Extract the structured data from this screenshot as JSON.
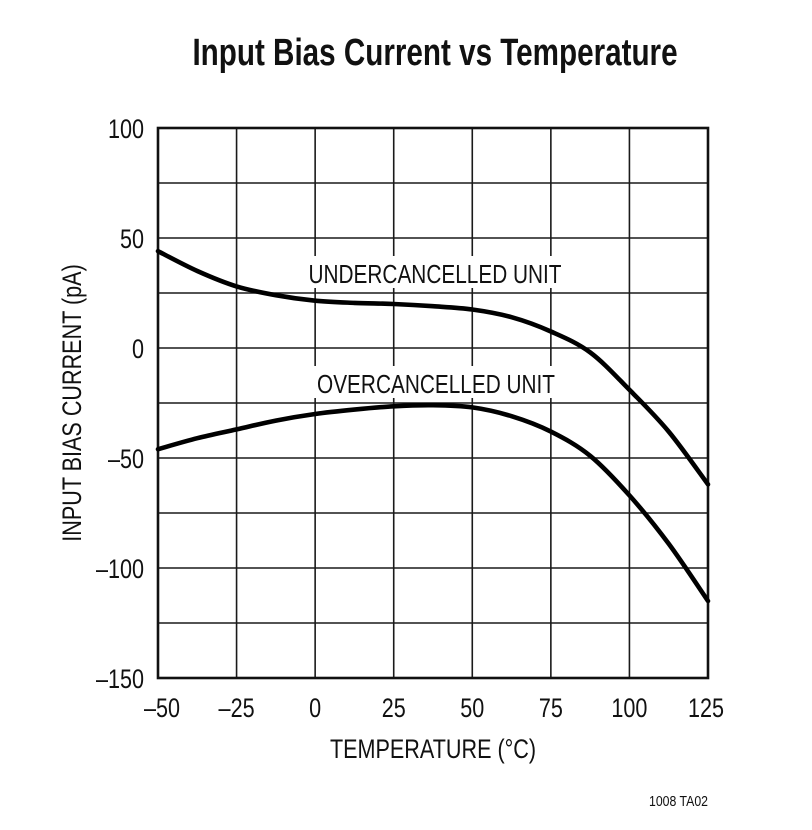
{
  "figure": {
    "title": "Input Bias Current vs Temperature",
    "footer_code": "1008 TA02"
  },
  "chart_data": {
    "type": "line",
    "title": "Input Bias Current vs Temperature",
    "xlabel": "TEMPERATURE (°C)",
    "ylabel": "INPUT BIAS CURRENT (pA)",
    "xlim": [
      -50,
      125
    ],
    "ylim": [
      -150,
      100
    ],
    "x_ticks": [
      -50,
      -25,
      0,
      25,
      50,
      75,
      100,
      125
    ],
    "x_tick_labels": [
      "–50",
      "–25",
      "0",
      "25",
      "50",
      "75",
      "100",
      "125"
    ],
    "y_ticks": [
      100,
      50,
      0,
      -50,
      -100,
      -150
    ],
    "y_tick_labels": [
      "100",
      "50",
      "0",
      "–50",
      "–100",
      "–150"
    ],
    "grid": true,
    "grid_y_step": 25,
    "grid_x_step": 25,
    "legend": "none (inline curve labels)",
    "annotations": [
      "UNDERCANCELLED UNIT",
      "OVERCANCELLED UNIT"
    ],
    "series": [
      {
        "name": "UNDERCANCELLED UNIT",
        "x": [
          -50,
          -37.5,
          -25,
          -12.5,
          0,
          12.5,
          25,
          37.5,
          50,
          62.5,
          75,
          87.5,
          100,
          112.5,
          125
        ],
        "values": [
          44,
          35,
          28,
          24,
          21.5,
          20.5,
          20,
          19,
          17.5,
          14,
          7.5,
          -2,
          -19,
          -38,
          -62
        ]
      },
      {
        "name": "OVERCANCELLED UNIT",
        "x": [
          -50,
          -37.5,
          -25,
          -12.5,
          0,
          12.5,
          25,
          37.5,
          50,
          62.5,
          75,
          87.5,
          100,
          112.5,
          125
        ],
        "values": [
          -46,
          -41,
          -37,
          -33,
          -30,
          -28,
          -26.5,
          -26,
          -27,
          -31,
          -38,
          -49,
          -67,
          -89,
          -115
        ]
      }
    ]
  }
}
